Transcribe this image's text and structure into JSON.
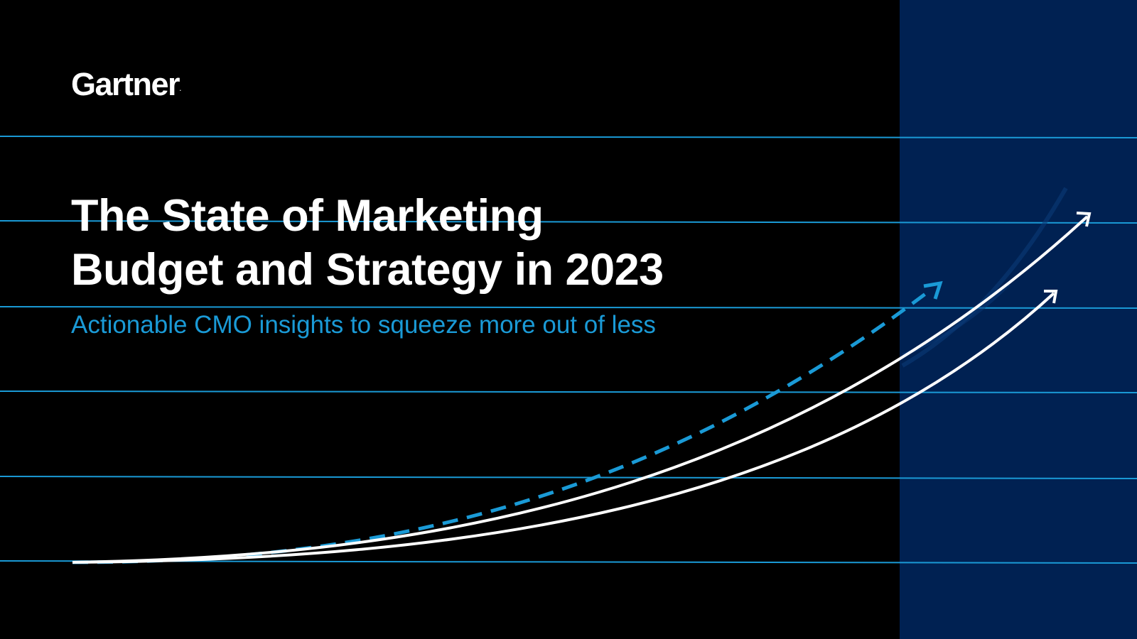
{
  "logo": {
    "text": "Gartner",
    "mark": "."
  },
  "title": {
    "line1": "The State of Marketing",
    "line2": "Budget and Strategy in 2023"
  },
  "subtitle": "Actionable CMO insights to squeeze more out of less",
  "colors": {
    "background": "#000000",
    "side_panel": "#002152",
    "accent_blue": "#1a9ad6",
    "text": "#ffffff"
  },
  "decoration": {
    "icons": [
      "dashed-growth-arrow-icon",
      "solid-growth-arrow-icon",
      "solid-growth-arrow-icon"
    ]
  }
}
